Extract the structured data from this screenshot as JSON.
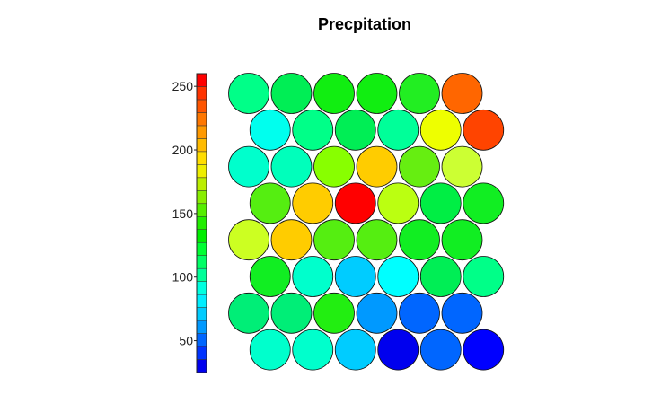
{
  "chart_data": {
    "type": "heatmap",
    "subtype": "som-hexagonal-component-plane",
    "title": "Precpitation",
    "colorscale": "rainbow (blue to red)",
    "colorbar": {
      "ticks": [
        50,
        100,
        150,
        200,
        250
      ],
      "range": [
        25,
        260
      ],
      "colors": [
        "#0000ee",
        "#0033ff",
        "#0066ff",
        "#0099ff",
        "#00ccff",
        "#00eeff",
        "#00ffe0",
        "#00ff99",
        "#00ff66",
        "#00ff33",
        "#00ee00",
        "#22ee00",
        "#55ee00",
        "#88ee00",
        "#bbee00",
        "#eeee00",
        "#ffdd00",
        "#ffbb00",
        "#ff9900",
        "#ff7700",
        "#ff5500",
        "#ff3300",
        "#ff0000"
      ]
    },
    "grid": {
      "rows": 8,
      "cols": 6,
      "layout": "hexagonal"
    },
    "rows": [
      [
        {
          "value": 115,
          "color": "#00ff88"
        },
        {
          "value": 120,
          "color": "#00ee55"
        },
        {
          "value": 135,
          "color": "#11ee11"
        },
        {
          "value": 135,
          "color": "#11ee11"
        },
        {
          "value": 130,
          "color": "#22ee22"
        },
        {
          "value": 230,
          "color": "#ff6600"
        }
      ],
      [
        {
          "value": 85,
          "color": "#00ffee"
        },
        {
          "value": 112,
          "color": "#00ff88"
        },
        {
          "value": 125,
          "color": "#00ee55"
        },
        {
          "value": 110,
          "color": "#00ff99"
        },
        {
          "value": 195,
          "color": "#eeff00"
        },
        {
          "value": 240,
          "color": "#ff4400"
        }
      ],
      [
        {
          "value": 100,
          "color": "#00ffcc"
        },
        {
          "value": 105,
          "color": "#00ffbb"
        },
        {
          "value": 165,
          "color": "#88ff00"
        },
        {
          "value": 210,
          "color": "#ffcc00"
        },
        {
          "value": 158,
          "color": "#66ee11"
        },
        {
          "value": 178,
          "color": "#ccff33"
        }
      ],
      [
        {
          "value": 155,
          "color": "#55ee11"
        },
        {
          "value": 210,
          "color": "#ffcc00"
        },
        {
          "value": 255,
          "color": "#ff0000"
        },
        {
          "value": 175,
          "color": "#bbff11"
        },
        {
          "value": 132,
          "color": "#00ee44"
        },
        {
          "value": 138,
          "color": "#11ee22"
        }
      ],
      [
        {
          "value": 175,
          "color": "#ccff22"
        },
        {
          "value": 210,
          "color": "#ffcc00"
        },
        {
          "value": 155,
          "color": "#55ee11"
        },
        {
          "value": 155,
          "color": "#55ee11"
        },
        {
          "value": 138,
          "color": "#11ee22"
        },
        {
          "value": 138,
          "color": "#11ee22"
        }
      ],
      [
        {
          "value": 140,
          "color": "#11ee22"
        },
        {
          "value": 100,
          "color": "#00ffcc"
        },
        {
          "value": 75,
          "color": "#00ccff"
        },
        {
          "value": 85,
          "color": "#00ffff"
        },
        {
          "value": 120,
          "color": "#00ee55"
        },
        {
          "value": 112,
          "color": "#00ff88"
        }
      ],
      [
        {
          "value": 110,
          "color": "#00ee77"
        },
        {
          "value": 115,
          "color": "#00ee77"
        },
        {
          "value": 140,
          "color": "#22ee11"
        },
        {
          "value": 60,
          "color": "#0099ff"
        },
        {
          "value": 50,
          "color": "#0066ff"
        },
        {
          "value": 50,
          "color": "#0066ff"
        }
      ],
      [
        {
          "value": 100,
          "color": "#00ffcc"
        },
        {
          "value": 100,
          "color": "#00ffcc"
        },
        {
          "value": 75,
          "color": "#00ccff"
        },
        {
          "value": 30,
          "color": "#0000ee"
        },
        {
          "value": 50,
          "color": "#0066ff"
        },
        {
          "value": 30,
          "color": "#0000ff"
        }
      ]
    ]
  }
}
